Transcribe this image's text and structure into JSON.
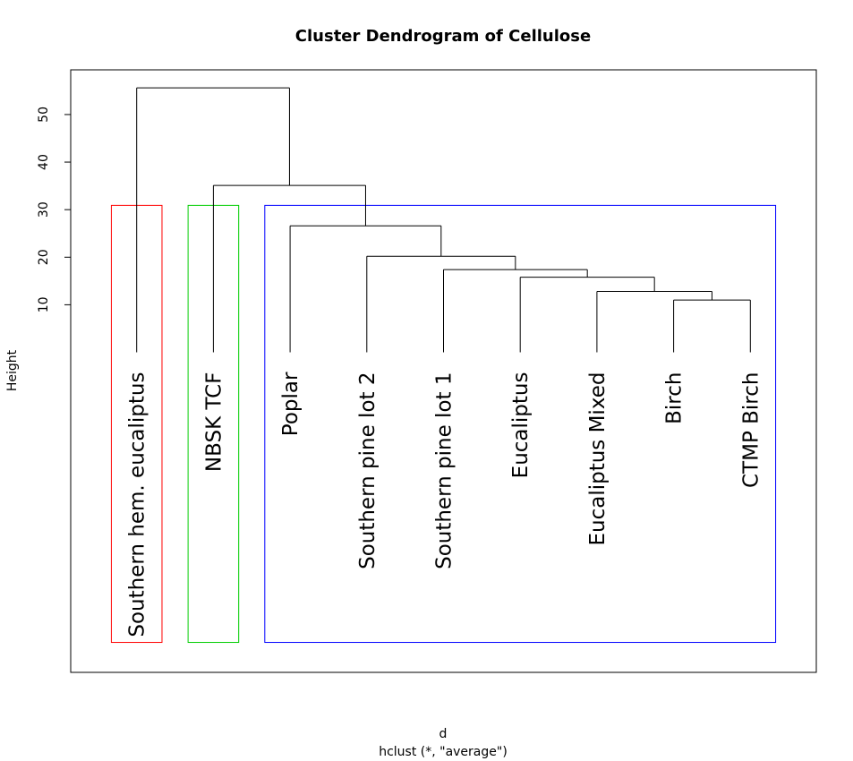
{
  "chart_data": {
    "type": "dendrogram",
    "title": "Cluster Dendrogram of Cellulose",
    "xlabel": "d",
    "sub": "hclust (*, \"average\")",
    "ylabel": "Height",
    "yticks": [
      10,
      20,
      30,
      40,
      50
    ],
    "ylim": [
      -67.3,
      59.4
    ],
    "leaf_height": 0,
    "leaves": [
      "Southern hem. eucaliptus",
      "NBSK TCF",
      "Poplar",
      "Southern pine lot 2",
      "Southern pine lot 1",
      "Eucaliptus",
      "Eucaliptus Mixed",
      "Birch",
      "CTMP Birch"
    ],
    "merges": [
      {
        "left": 7,
        "right": 8,
        "height": 11.0
      },
      {
        "left": 6,
        "right": "m0",
        "height": 12.8
      },
      {
        "left": 5,
        "right": "m1",
        "height": 15.8
      },
      {
        "left": 4,
        "right": "m2",
        "height": 17.4
      },
      {
        "left": 3,
        "right": "m3",
        "height": 20.2
      },
      {
        "left": 2,
        "right": "m4",
        "height": 26.6
      },
      {
        "left": 1,
        "right": "m5",
        "height": 35.1
      },
      {
        "left": 0,
        "right": "m6",
        "height": 55.6
      }
    ],
    "cluster_rects": [
      {
        "leaves": [
          0,
          0
        ],
        "color": "#ff0000"
      },
      {
        "leaves": [
          1,
          1
        ],
        "color": "#00cd00"
      },
      {
        "leaves": [
          2,
          8
        ],
        "color": "#0000ff"
      }
    ],
    "rect_top": 30.9,
    "rect_bottom": -61.0
  }
}
